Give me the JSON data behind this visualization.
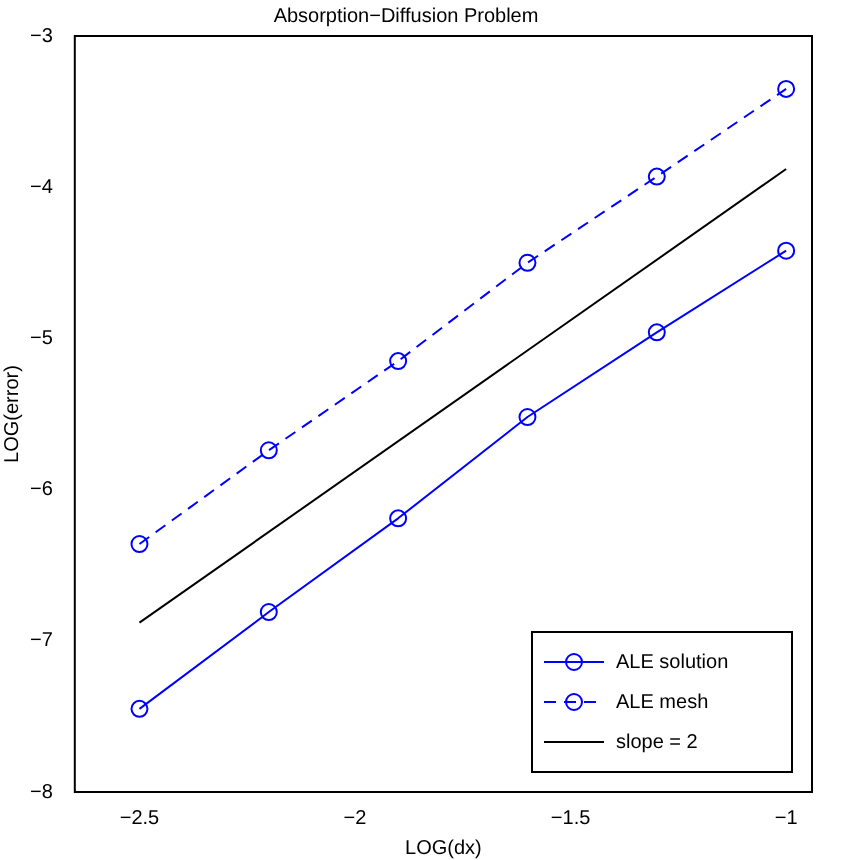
{
  "chart_data": {
    "type": "line",
    "title": "Absorption−Diffusion Problem",
    "xlabel": "LOG(dx)",
    "ylabel": "LOG(error)",
    "x": [
      -2.5,
      -2.2,
      -1.9,
      -1.6,
      -1.3,
      -1.0
    ],
    "series": [
      {
        "name": "ALE solution",
        "color": "#0000ff",
        "values": [
          -7.45,
          -6.81,
          -6.19,
          -5.52,
          -4.96,
          -4.42
        ],
        "marker": "circle",
        "line_style": "solid"
      },
      {
        "name": "ALE mesh",
        "color": "#0000ff",
        "values": [
          -6.36,
          -5.74,
          -5.15,
          -4.5,
          -3.93,
          -3.35
        ],
        "marker": "circle",
        "line_style": "dashed"
      },
      {
        "name": "slope = 2",
        "color": "#000000",
        "x": [
          -2.5,
          -1.0
        ],
        "values": [
          -6.88,
          -3.88
        ],
        "marker": "none",
        "line_style": "solid"
      }
    ],
    "xlim": [
      -2.65,
      -0.94
    ],
    "xticks": [
      -2.5,
      -2,
      -1.5,
      -1
    ],
    "ylim": [
      -8,
      -3
    ],
    "yticks": [
      -8,
      -7,
      -6,
      -5,
      -4,
      -3
    ],
    "grid": false,
    "legend": "bottom right"
  }
}
